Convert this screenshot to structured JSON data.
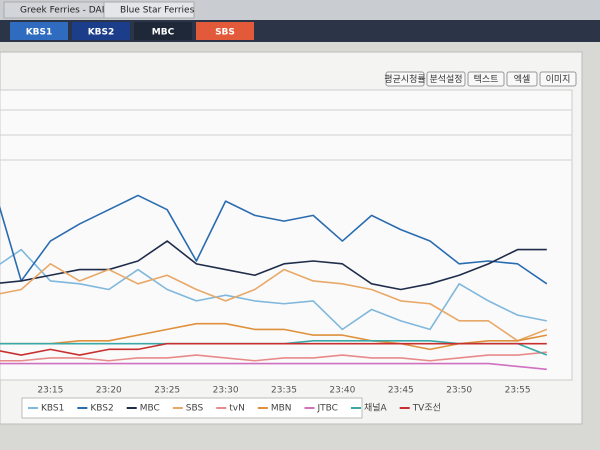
{
  "ui": {
    "browser_tabs": [
      "Greek Ferries - DAN...",
      "Blue Star Ferries"
    ],
    "channel_tabs": [
      "KBS1",
      "KBS2",
      "MBC",
      "SBS"
    ],
    "toolbar": [
      "평균시청률",
      "분석설정",
      "텍스트",
      "엑셀",
      "이미지"
    ]
  },
  "chart_data": {
    "type": "line",
    "categories": [
      null,
      null,
      "23:15",
      null,
      "23:20",
      null,
      "23:25",
      null,
      "23:30",
      null,
      "23:35",
      null,
      "23:40",
      null,
      "23:45",
      null,
      "23:50",
      null,
      "23:55",
      null
    ],
    "ylim": [
      0,
      100
    ],
    "series": [
      {
        "name": "KBS1",
        "color": "#7fb8dc",
        "values": [
          37,
          44,
          33,
          32,
          30,
          37,
          30,
          26,
          28,
          26,
          25,
          26,
          16,
          23,
          19,
          16,
          32,
          26,
          21,
          19
        ]
      },
      {
        "name": "KBS2",
        "color": "#2a6cb0",
        "values": [
          68,
          33,
          47,
          53,
          58,
          63,
          58,
          40,
          61,
          56,
          54,
          56,
          47,
          56,
          51,
          47,
          39,
          40,
          39,
          32
        ]
      },
      {
        "name": "MBC",
        "color": "#1f2d4a",
        "values": [
          32,
          33,
          35,
          37,
          37,
          40,
          47,
          39,
          37,
          35,
          39,
          40,
          39,
          32,
          30,
          32,
          35,
          39,
          44,
          44
        ]
      },
      {
        "name": "SBS",
        "color": "#e8a868",
        "values": [
          28,
          30,
          39,
          33,
          37,
          32,
          35,
          30,
          26,
          30,
          37,
          33,
          32,
          30,
          26,
          25,
          19,
          19,
          12,
          16
        ]
      },
      {
        "name": "tvN",
        "color": "#e88a8a",
        "values": [
          5,
          5,
          6,
          6,
          5,
          6,
          6,
          7,
          6,
          5,
          6,
          6,
          7,
          6,
          6,
          5,
          6,
          7,
          7,
          8
        ]
      },
      {
        "name": "MBN",
        "color": "#e0903a",
        "values": [
          11,
          11,
          11,
          12,
          12,
          14,
          16,
          18,
          18,
          16,
          16,
          14,
          14,
          12,
          11,
          9,
          11,
          12,
          12,
          14
        ]
      },
      {
        "name": "JTBC",
        "color": "#d070c0",
        "values": [
          4,
          4,
          4,
          4,
          4,
          4,
          4,
          4,
          4,
          4,
          4,
          4,
          4,
          4,
          4,
          4,
          4,
          4,
          3,
          2
        ]
      },
      {
        "name": "채널A",
        "color": "#3aa8a8",
        "values": [
          11,
          11,
          11,
          11,
          11,
          11,
          11,
          11,
          11,
          11,
          11,
          12,
          12,
          12,
          12,
          12,
          11,
          11,
          11,
          7
        ]
      },
      {
        "name": "TV조선",
        "color": "#c83030",
        "values": [
          9,
          7,
          9,
          7,
          9,
          9,
          11,
          11,
          11,
          11,
          11,
          11,
          11,
          11,
          11,
          11,
          11,
          11,
          11,
          11
        ]
      }
    ]
  }
}
